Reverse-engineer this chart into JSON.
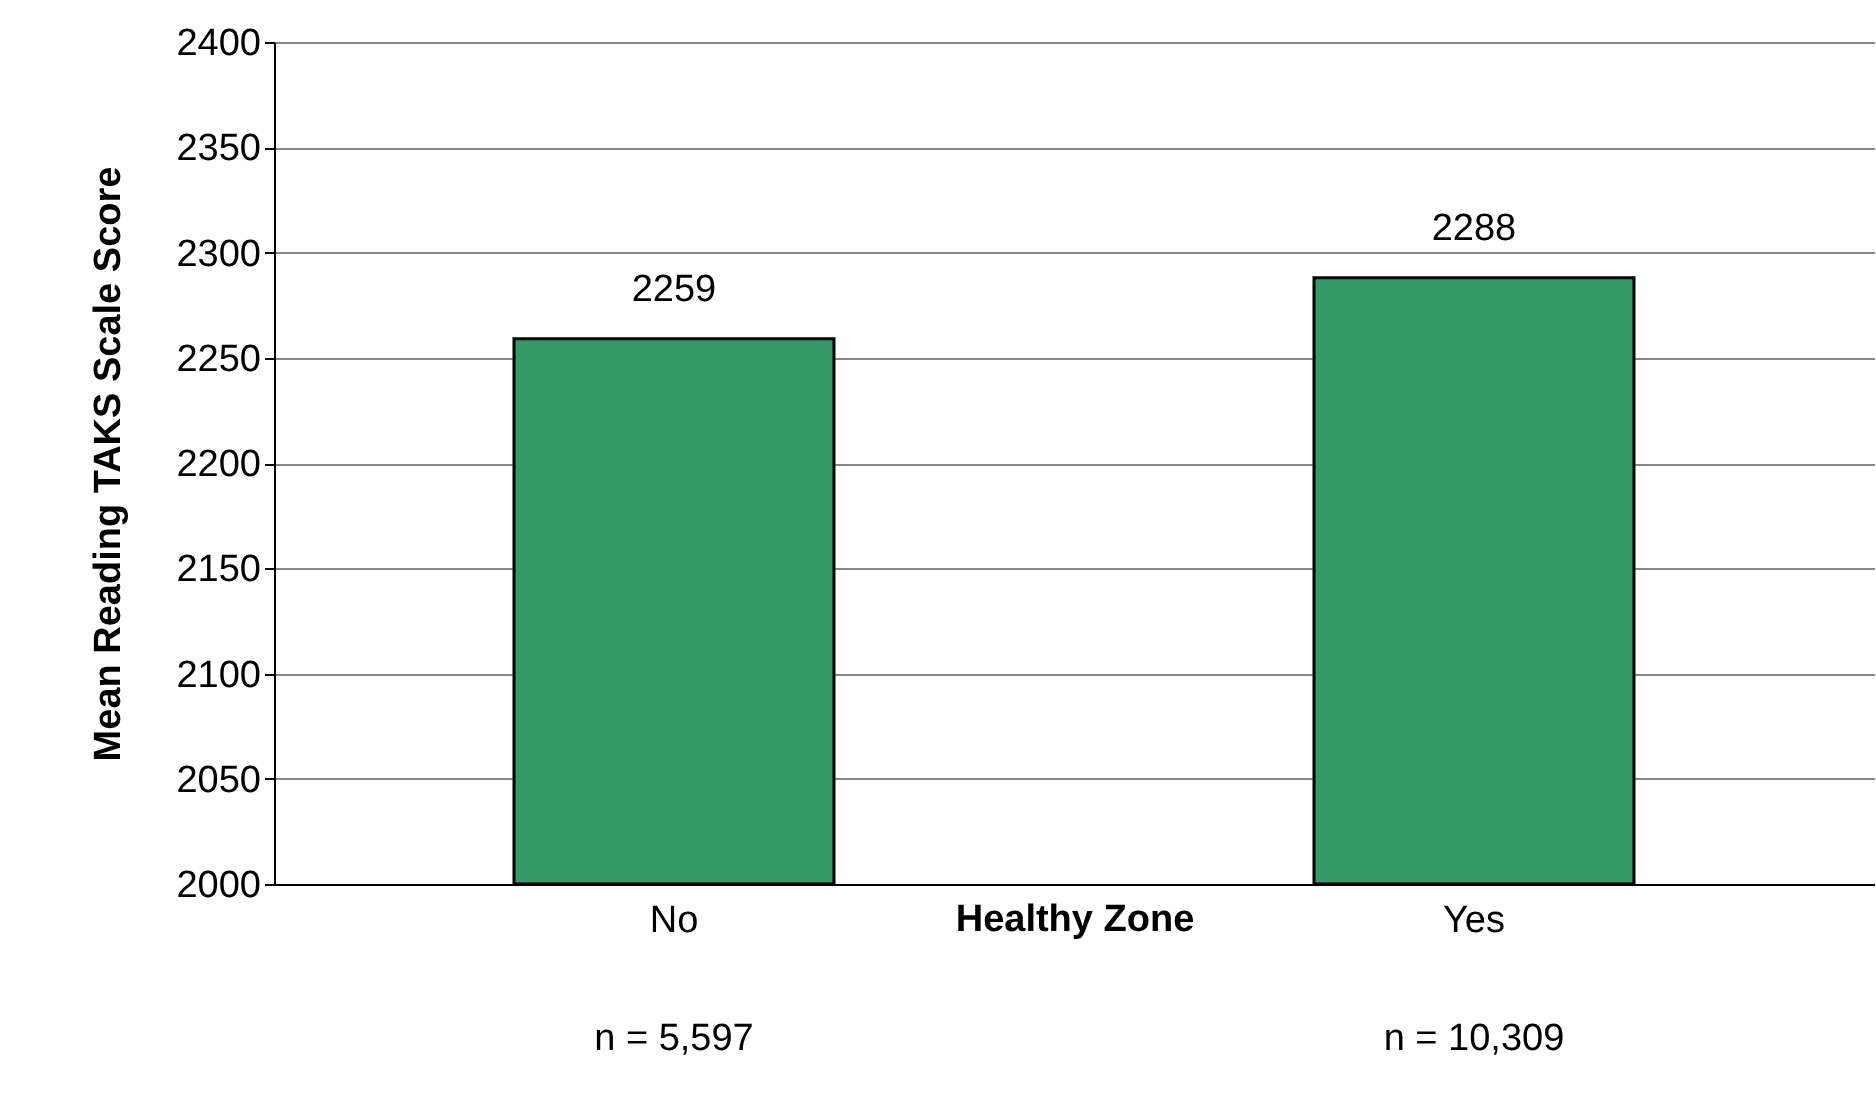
{
  "chart_data": {
    "type": "bar",
    "xlabel": "Healthy Zone",
    "ylabel": "Mean Reading TAKS Scale Score",
    "categories": [
      "No",
      "Yes"
    ],
    "values": [
      2259,
      2288
    ],
    "color": "#339966",
    "ylim": [
      2000,
      2400
    ],
    "yticks": [
      2000,
      2050,
      2100,
      2150,
      2200,
      2250,
      2300,
      2350,
      2400
    ],
    "grid": "y",
    "data_labels": true,
    "annotations": [
      "n = 5,597",
      "n = 10,309"
    ]
  }
}
